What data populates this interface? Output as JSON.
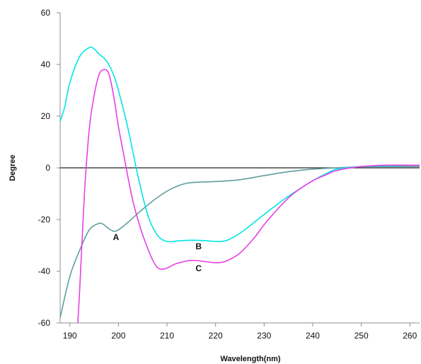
{
  "chart_data": {
    "type": "line",
    "title": "",
    "xlabel": "Wavelength(nm)",
    "ylabel": "Degree",
    "xlim": [
      188,
      262
    ],
    "ylim": [
      -60,
      60
    ],
    "x_ticks": [
      190,
      200,
      210,
      220,
      230,
      240,
      250,
      260
    ],
    "y_ticks": [
      -60,
      -40,
      -20,
      0,
      20,
      40,
      60
    ],
    "grid": false,
    "legend": "none",
    "zero_line": true,
    "annotations": [
      {
        "text": "A",
        "x": 199.5,
        "y": -28
      },
      {
        "text": "B",
        "x": 216.5,
        "y": -31.5
      },
      {
        "text": "C",
        "x": 216.5,
        "y": -40
      }
    ],
    "series": [
      {
        "label": "A",
        "color": "#5f9ea0",
        "x": [
          188,
          190,
          192,
          194,
          196,
          197,
          198,
          199,
          200,
          202,
          205,
          208,
          211,
          214,
          217,
          220,
          225,
          230,
          235,
          240,
          245,
          250,
          255,
          262
        ],
        "y": [
          -58,
          -42,
          -32,
          -24,
          -21.5,
          -22,
          -23.5,
          -24.5,
          -24,
          -21,
          -16,
          -11.5,
          -8,
          -6,
          -5.5,
          -5.3,
          -4.6,
          -3,
          -1.5,
          -0.5,
          0,
          0.4,
          0.5,
          0.5
        ]
      },
      {
        "label": "B",
        "color": "#00e5e5",
        "x": [
          188,
          189,
          190,
          192,
          194,
          195,
          196,
          197,
          198,
          199,
          200,
          202,
          204,
          206,
          208,
          210,
          212,
          215,
          218,
          221,
          223,
          226,
          230,
          235,
          240,
          243,
          245,
          250,
          255,
          262
        ],
        "y": [
          18,
          24,
          33,
          43,
          46.5,
          46,
          44,
          42.5,
          40,
          36,
          30,
          15,
          -3,
          -18,
          -26,
          -28.5,
          -28.3,
          -28,
          -28.2,
          -28.5,
          -27.5,
          -24,
          -18,
          -11,
          -5,
          -2,
          -0.5,
          0.5,
          0.8,
          1
        ]
      },
      {
        "label": "C",
        "color": "#e640e6",
        "x": [
          191,
          192,
          193,
          194,
          195,
          196,
          197,
          198,
          199,
          200,
          201,
          202,
          203,
          204,
          205,
          206,
          207,
          208,
          209,
          210,
          212,
          215,
          218,
          220,
          222,
          225,
          228,
          230,
          233,
          236,
          240,
          243,
          245,
          250,
          255,
          262
        ],
        "y": [
          -80,
          -48,
          -10,
          15,
          28,
          36,
          38,
          36.5,
          28,
          16,
          6,
          -4,
          -13,
          -20,
          -26,
          -31,
          -35.5,
          -38.5,
          -39.2,
          -38.8,
          -37,
          -35.8,
          -36.3,
          -36.7,
          -36.2,
          -33,
          -27,
          -22,
          -15.5,
          -10,
          -5,
          -2.5,
          -1,
          0.5,
          1,
          1
        ]
      }
    ]
  }
}
